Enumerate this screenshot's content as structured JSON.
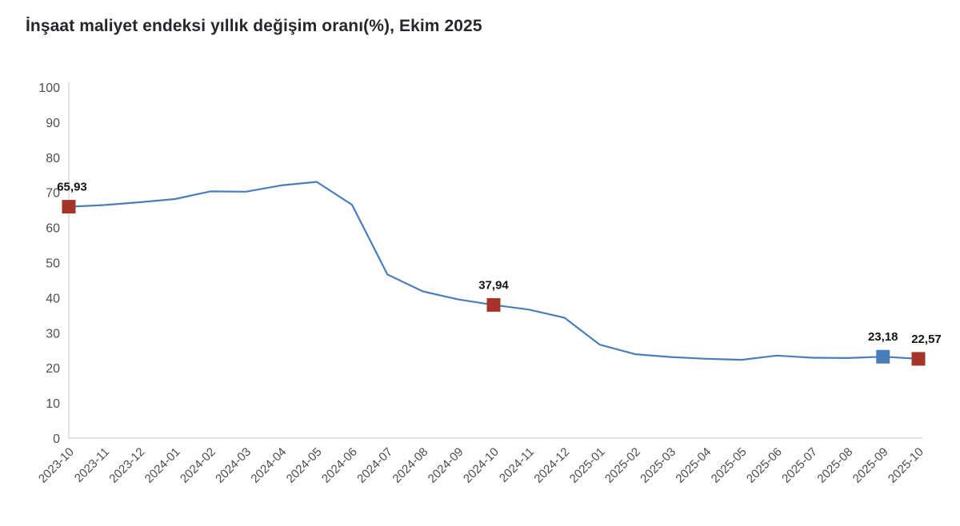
{
  "page": {
    "background_color": "#ffffff"
  },
  "chart_data": {
    "type": "line",
    "title": "İnşaat maliyet endeksi yıllık değişim oranı(%), Ekim 2025",
    "xlabel": "",
    "ylabel": "",
    "x": [
      "2023-10",
      "2023-11",
      "2023-12",
      "2024-01",
      "2024-02",
      "2024-03",
      "2024-04",
      "2024-05",
      "2024-06",
      "2024-07",
      "2024-08",
      "2024-09",
      "2024-10",
      "2024-11",
      "2024-12",
      "2025-01",
      "2025-02",
      "2025-03",
      "2025-04",
      "2025-05",
      "2025-06",
      "2025-07",
      "2025-08",
      "2025-09",
      "2025-10"
    ],
    "series": [
      {
        "name": "İnşaat maliyet endeksi yıllık değişim oranı (%)",
        "values": [
          65.93,
          66.4,
          67.2,
          68.1,
          70.3,
          70.2,
          72.0,
          73.0,
          66.5,
          46.6,
          41.8,
          39.5,
          37.94,
          36.6,
          34.3,
          26.6,
          23.9,
          23.1,
          22.6,
          22.3,
          23.5,
          22.9,
          22.8,
          23.18,
          22.57
        ]
      }
    ],
    "annotated_points": [
      {
        "x": "2023-10",
        "value": 65.93,
        "label": "65,93",
        "marker": "square",
        "marker_color": "#a63529",
        "label_dx": 4
      },
      {
        "x": "2024-10",
        "value": 37.94,
        "label": "37,94",
        "marker": "square",
        "marker_color": "#a63529",
        "label_dx": 0
      },
      {
        "x": "2025-09",
        "value": 23.18,
        "label": "23,18",
        "marker": "square",
        "marker_color": "#4a7ebb",
        "label_dx": 0
      },
      {
        "x": "2025-10",
        "value": 22.57,
        "label": "22,57",
        "marker": "square",
        "marker_color": "#a63529",
        "label_dx": 10
      }
    ],
    "ylim": [
      0,
      100
    ],
    "y_ticks": [
      0,
      10,
      20,
      30,
      40,
      50,
      60,
      70,
      80,
      90,
      100
    ],
    "x_tick_rotation": -45,
    "grid": "off",
    "legend": "none",
    "line_color": "#4a7ebb",
    "axis_color": "#d9d9d9",
    "decimal_separator": ","
  }
}
